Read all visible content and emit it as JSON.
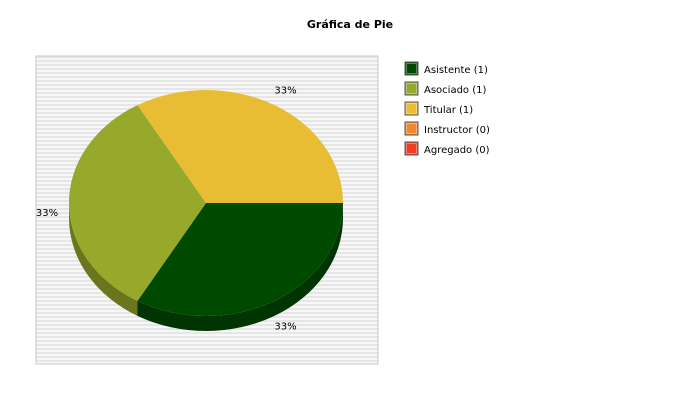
{
  "chart_data": {
    "type": "pie",
    "title": "Gráfica de Pie",
    "style": "3d",
    "background": "horizontal-stripes",
    "legend_position": "right",
    "slices": [
      {
        "label": "Asistente",
        "count": 1,
        "value": 33.33,
        "percent_label": "33%",
        "color": "#004a00"
      },
      {
        "label": "Asociado",
        "count": 1,
        "value": 33.33,
        "percent_label": "33%",
        "color": "#97a92a"
      },
      {
        "label": "Titular",
        "count": 1,
        "value": 33.33,
        "percent_label": "33%",
        "color": "#e8bd34"
      },
      {
        "label": "Instructor",
        "count": 0,
        "value": 0,
        "percent_label": "",
        "color": "#f08a30"
      },
      {
        "label": "Agregado",
        "count": 0,
        "value": 0,
        "percent_label": "",
        "color": "#ef3d22"
      }
    ],
    "legend": [
      "Asistente (1)",
      "Asociado (1)",
      "Titular (1)",
      "Instructor (0)",
      "Agregado (0)"
    ]
  }
}
